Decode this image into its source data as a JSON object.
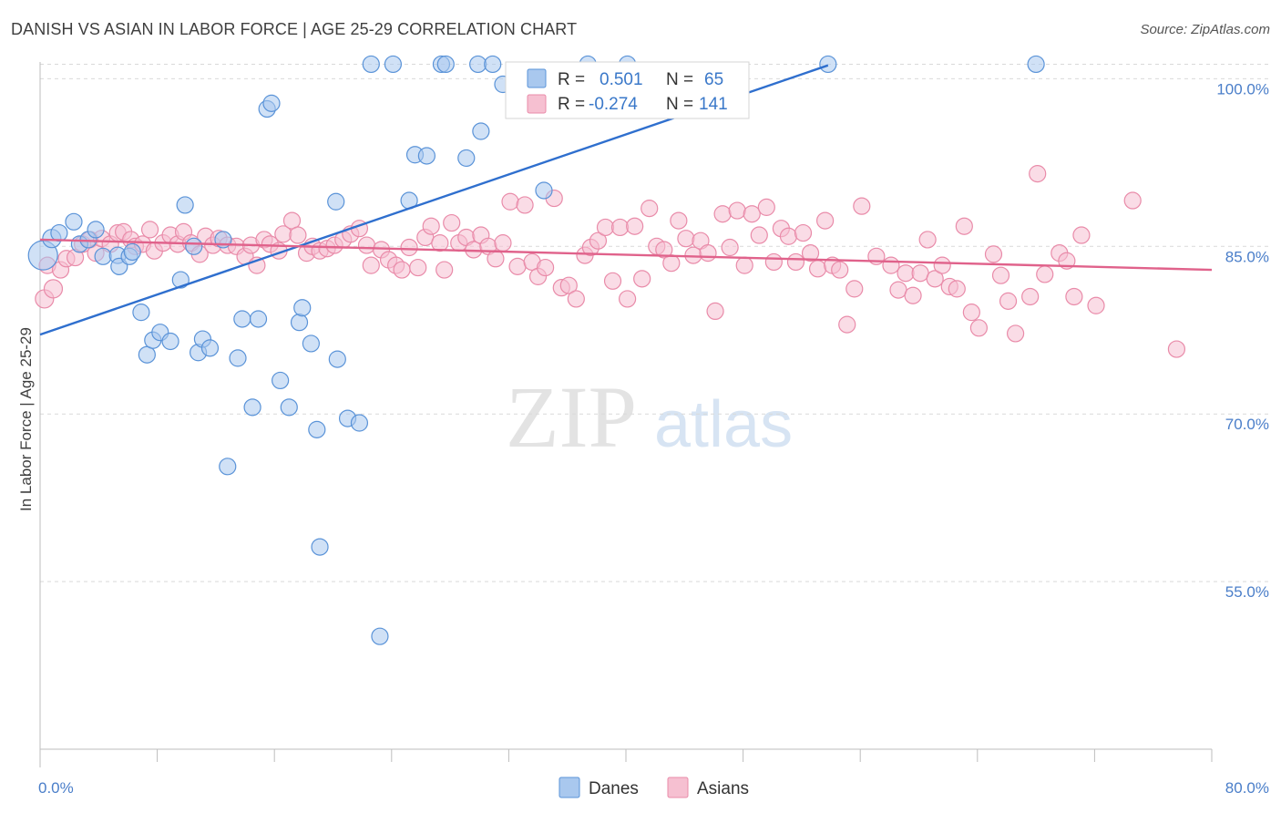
{
  "title": "DANISH VS ASIAN IN LABOR FORCE | AGE 25-29 CORRELATION CHART",
  "source": "Source: ZipAtlas.com",
  "watermark": {
    "zip": "ZIP",
    "atlas": "atlas"
  },
  "colors": {
    "danes_fill": "#a9c8ee",
    "danes_stroke": "#5a93d8",
    "danes_line": "#2f6fce",
    "asians_fill": "#f6c0d1",
    "asians_stroke": "#e98ba9",
    "asians_line": "#e0628b",
    "tick_text": "#4a7ec9",
    "grid": "#d9d9d9"
  },
  "legend": {
    "r_label": "R =",
    "n_label": "N =",
    "danes": {
      "r": "0.501",
      "n": "65"
    },
    "asians": {
      "r": "-0.274",
      "n": "141"
    }
  },
  "bottom_legend": {
    "danes": "Danes",
    "asians": "Asians"
  },
  "chart_data": {
    "type": "scatter",
    "title": "DANISH VS ASIAN IN LABOR FORCE | AGE 25-29 CORRELATION CHART",
    "xlabel": "",
    "ylabel": "In Labor Force | Age 25-29",
    "xlim": [
      0,
      80
    ],
    "ylim": [
      40,
      101.5
    ],
    "x_tick_labels": [
      {
        "value": 0,
        "label": "0.0%"
      },
      {
        "value": 80,
        "label": "80.0%"
      }
    ],
    "y_tick_labels": [
      {
        "value": 100,
        "label": "100.0%"
      },
      {
        "value": 85,
        "label": "85.0%"
      },
      {
        "value": 70,
        "label": "70.0%"
      },
      {
        "value": 55,
        "label": "55.0%"
      }
    ],
    "legend_position": "top-center",
    "series": [
      {
        "name": "Danes",
        "r": 0.501,
        "n": 65,
        "trend": {
          "x": [
            0,
            53.8
          ],
          "y": [
            77.1,
            101.2
          ]
        },
        "points": [
          [
            0.2,
            84.2,
            16
          ],
          [
            0.8,
            85.7,
            10
          ],
          [
            1.3,
            86.2,
            9
          ],
          [
            2.3,
            87.2,
            9
          ],
          [
            2.7,
            85.2,
            9
          ],
          [
            3.3,
            85.6,
            9
          ],
          [
            3.8,
            86.5,
            9
          ],
          [
            4.3,
            84.1,
            9
          ],
          [
            5.3,
            84.2,
            9
          ],
          [
            5.4,
            83.2,
            9
          ],
          [
            6.1,
            84.1,
            9
          ],
          [
            6.3,
            84.5,
            9
          ],
          [
            6.9,
            79.1,
            9
          ],
          [
            7.3,
            75.3,
            9
          ],
          [
            7.7,
            76.6,
            9
          ],
          [
            8.2,
            77.3,
            9
          ],
          [
            8.9,
            76.5,
            9
          ],
          [
            9.6,
            82.0,
            9
          ],
          [
            9.9,
            88.7,
            9
          ],
          [
            10.5,
            85.0,
            9
          ],
          [
            10.8,
            75.5,
            9
          ],
          [
            11.1,
            76.7,
            9
          ],
          [
            11.6,
            75.9,
            9
          ],
          [
            12.5,
            85.6,
            9
          ],
          [
            12.8,
            65.3,
            9
          ],
          [
            13.5,
            75.0,
            9
          ],
          [
            13.8,
            78.5,
            9
          ],
          [
            14.5,
            70.6,
            9
          ],
          [
            14.9,
            78.5,
            9
          ],
          [
            15.5,
            97.3,
            9
          ],
          [
            15.8,
            97.8,
            9
          ],
          [
            16.4,
            73.0,
            9
          ],
          [
            17.0,
            70.6,
            9
          ],
          [
            17.7,
            78.2,
            9
          ],
          [
            17.9,
            79.5,
            9
          ],
          [
            18.5,
            76.3,
            9
          ],
          [
            18.9,
            68.6,
            9
          ],
          [
            19.1,
            58.1,
            9
          ],
          [
            20.2,
            89.0,
            9
          ],
          [
            20.3,
            74.9,
            9
          ],
          [
            21.0,
            69.6,
            9
          ],
          [
            21.8,
            69.2,
            9
          ],
          [
            22.6,
            101.3,
            9
          ],
          [
            23.2,
            50.1,
            9
          ],
          [
            24.1,
            101.3,
            9
          ],
          [
            25.2,
            89.1,
            9
          ],
          [
            25.6,
            93.2,
            9
          ],
          [
            26.4,
            93.1,
            9
          ],
          [
            27.4,
            101.3,
            9
          ],
          [
            27.7,
            101.3,
            9
          ],
          [
            29.1,
            92.9,
            9
          ],
          [
            29.9,
            101.3,
            9
          ],
          [
            30.1,
            95.3,
            9
          ],
          [
            30.9,
            101.3,
            9
          ],
          [
            31.6,
            99.5,
            9
          ],
          [
            34.4,
            90.0,
            9
          ],
          [
            37.4,
            101.3,
            9
          ],
          [
            40.1,
            101.3,
            9
          ],
          [
            53.8,
            101.3,
            9
          ],
          [
            68.0,
            101.3,
            9
          ]
        ]
      },
      {
        "name": "Asians",
        "r": -0.274,
        "n": 141,
        "trend": {
          "x": [
            0,
            80
          ],
          "y": [
            85.6,
            82.9
          ]
        },
        "points": [
          [
            0.3,
            80.3,
            10
          ],
          [
            0.5,
            83.3,
            9
          ],
          [
            0.9,
            81.2,
            10
          ],
          [
            1.4,
            82.9,
            9
          ],
          [
            1.8,
            83.9,
            9
          ],
          [
            2.4,
            84.0,
            9
          ],
          [
            2.9,
            85.2,
            9
          ],
          [
            3.4,
            85.6,
            9
          ],
          [
            3.8,
            84.4,
            9
          ],
          [
            4.2,
            85.7,
            9
          ],
          [
            4.8,
            85.2,
            9
          ],
          [
            5.3,
            86.2,
            9
          ],
          [
            5.7,
            86.3,
            9
          ],
          [
            6.2,
            85.6,
            9
          ],
          [
            6.5,
            85.0,
            9
          ],
          [
            7.0,
            85.2,
            9
          ],
          [
            7.5,
            86.5,
            9
          ],
          [
            7.8,
            84.6,
            9
          ],
          [
            8.4,
            85.3,
            9
          ],
          [
            8.9,
            86.0,
            9
          ],
          [
            9.4,
            85.2,
            9
          ],
          [
            9.8,
            86.3,
            9
          ],
          [
            10.3,
            85.3,
            9
          ],
          [
            10.9,
            84.3,
            9
          ],
          [
            11.3,
            85.9,
            9
          ],
          [
            11.8,
            85.1,
            9
          ],
          [
            12.2,
            85.7,
            9
          ],
          [
            12.8,
            85.1,
            9
          ],
          [
            13.4,
            85.0,
            9
          ],
          [
            14.0,
            84.1,
            9
          ],
          [
            14.4,
            85.1,
            9
          ],
          [
            14.8,
            83.3,
            9
          ],
          [
            15.3,
            85.6,
            9
          ],
          [
            15.7,
            85.2,
            9
          ],
          [
            16.3,
            84.6,
            9
          ],
          [
            16.6,
            86.1,
            9
          ],
          [
            17.2,
            87.3,
            9
          ],
          [
            17.6,
            86.0,
            9
          ],
          [
            18.2,
            84.4,
            9
          ],
          [
            18.6,
            85.0,
            9
          ],
          [
            19.1,
            84.6,
            9
          ],
          [
            19.6,
            84.8,
            9
          ],
          [
            20.1,
            85.1,
            9
          ],
          [
            20.7,
            85.6,
            9
          ],
          [
            21.2,
            86.1,
            9
          ],
          [
            21.8,
            86.6,
            9
          ],
          [
            22.3,
            85.1,
            9
          ],
          [
            22.6,
            83.3,
            9
          ],
          [
            23.3,
            84.7,
            9
          ],
          [
            23.8,
            83.8,
            9
          ],
          [
            24.3,
            83.3,
            9
          ],
          [
            24.7,
            82.9,
            9
          ],
          [
            25.2,
            84.9,
            9
          ],
          [
            25.8,
            83.1,
            9
          ],
          [
            26.3,
            85.8,
            9
          ],
          [
            26.7,
            86.8,
            9
          ],
          [
            27.3,
            85.3,
            9
          ],
          [
            27.6,
            82.9,
            9
          ],
          [
            28.1,
            87.1,
            9
          ],
          [
            28.6,
            85.3,
            9
          ],
          [
            29.1,
            85.8,
            9
          ],
          [
            29.6,
            84.7,
            9
          ],
          [
            30.1,
            86.0,
            9
          ],
          [
            30.6,
            85.0,
            9
          ],
          [
            31.1,
            83.9,
            9
          ],
          [
            31.6,
            85.3,
            9
          ],
          [
            32.1,
            89.0,
            9
          ],
          [
            32.6,
            83.2,
            9
          ],
          [
            33.1,
            88.7,
            9
          ],
          [
            33.6,
            83.6,
            9
          ],
          [
            34.0,
            82.3,
            9
          ],
          [
            34.5,
            83.1,
            9
          ],
          [
            35.1,
            89.3,
            9
          ],
          [
            35.6,
            81.3,
            9
          ],
          [
            36.1,
            81.5,
            9
          ],
          [
            36.6,
            80.3,
            9
          ],
          [
            37.2,
            84.2,
            9
          ],
          [
            37.6,
            84.9,
            9
          ],
          [
            38.1,
            85.5,
            9
          ],
          [
            38.6,
            86.7,
            9
          ],
          [
            39.1,
            81.9,
            9
          ],
          [
            39.6,
            86.7,
            9
          ],
          [
            40.1,
            80.3,
            9
          ],
          [
            40.6,
            86.8,
            9
          ],
          [
            41.1,
            82.1,
            9
          ],
          [
            41.6,
            88.4,
            9
          ],
          [
            42.1,
            85.0,
            9
          ],
          [
            42.6,
            84.7,
            9
          ],
          [
            43.1,
            83.5,
            9
          ],
          [
            43.6,
            87.3,
            9
          ],
          [
            44.1,
            85.7,
            9
          ],
          [
            44.6,
            84.2,
            9
          ],
          [
            45.1,
            85.5,
            9
          ],
          [
            45.6,
            84.4,
            9
          ],
          [
            46.1,
            79.2,
            9
          ],
          [
            46.6,
            87.9,
            9
          ],
          [
            47.1,
            84.9,
            9
          ],
          [
            47.6,
            88.2,
            9
          ],
          [
            48.1,
            83.3,
            9
          ],
          [
            48.6,
            87.9,
            9
          ],
          [
            49.1,
            86.0,
            9
          ],
          [
            49.6,
            88.5,
            9
          ],
          [
            50.1,
            83.6,
            9
          ],
          [
            50.6,
            86.6,
            9
          ],
          [
            51.1,
            85.9,
            9
          ],
          [
            51.6,
            83.6,
            9
          ],
          [
            52.1,
            86.2,
            9
          ],
          [
            52.6,
            84.4,
            9
          ],
          [
            53.1,
            83.0,
            9
          ],
          [
            53.6,
            87.3,
            9
          ],
          [
            54.1,
            83.3,
            9
          ],
          [
            54.6,
            82.9,
            9
          ],
          [
            55.1,
            78.0,
            9
          ],
          [
            55.6,
            81.2,
            9
          ],
          [
            56.1,
            88.6,
            9
          ],
          [
            57.1,
            84.1,
            9
          ],
          [
            58.1,
            83.3,
            9
          ],
          [
            58.6,
            81.1,
            9
          ],
          [
            59.1,
            82.6,
            9
          ],
          [
            59.6,
            80.6,
            9
          ],
          [
            60.1,
            82.6,
            9
          ],
          [
            60.6,
            85.6,
            9
          ],
          [
            61.1,
            82.1,
            9
          ],
          [
            61.6,
            83.3,
            9
          ],
          [
            62.1,
            81.4,
            9
          ],
          [
            62.6,
            81.2,
            9
          ],
          [
            63.1,
            86.8,
            9
          ],
          [
            63.6,
            79.1,
            9
          ],
          [
            64.1,
            77.7,
            9
          ],
          [
            65.1,
            84.3,
            9
          ],
          [
            65.6,
            82.4,
            9
          ],
          [
            66.1,
            80.1,
            9
          ],
          [
            66.6,
            77.2,
            9
          ],
          [
            67.6,
            80.5,
            9
          ],
          [
            68.1,
            91.5,
            9
          ],
          [
            68.6,
            82.5,
            9
          ],
          [
            69.6,
            84.4,
            9
          ],
          [
            70.1,
            83.7,
            9
          ],
          [
            70.6,
            80.5,
            9
          ],
          [
            71.1,
            86.0,
            9
          ],
          [
            72.1,
            79.7,
            9
          ],
          [
            74.6,
            89.1,
            9
          ],
          [
            77.6,
            75.8,
            9
          ]
        ]
      }
    ]
  }
}
